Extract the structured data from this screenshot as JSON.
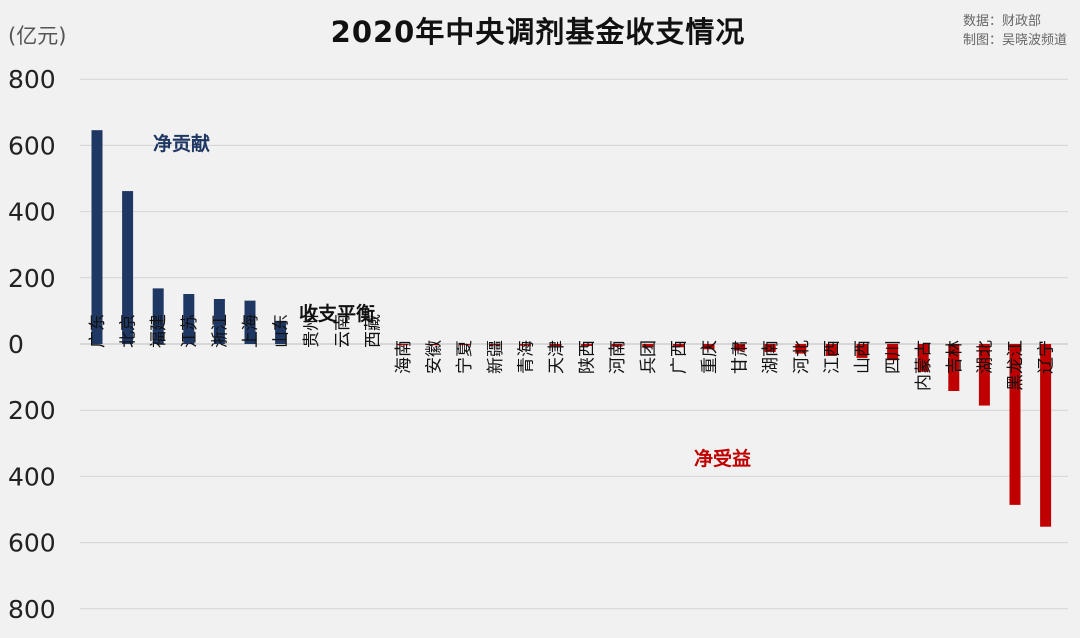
{
  "chart_data": {
    "type": "bar",
    "title": "2020年中央调剂基金收支情况",
    "unit": "(亿元)",
    "source_line1": "数据：财政部",
    "source_line2": "制图：吴晓波频道",
    "ylim": [
      -800,
      800
    ],
    "yticks": [
      800,
      600,
      400,
      200,
      0,
      -200,
      -400,
      -600,
      -800
    ],
    "ytick_labels": [
      "800",
      "600",
      "400",
      "200",
      "0",
      "200",
      "400",
      "600",
      "800"
    ],
    "grid": true,
    "categories": [
      "广东",
      "北京",
      "福建",
      "江苏",
      "浙江",
      "上海",
      "山东",
      "贵州",
      "云南",
      "西藏",
      "海南",
      "安徽",
      "宁夏",
      "新疆",
      "青海",
      "天津",
      "陕西",
      "河南",
      "兵团",
      "广西",
      "重庆",
      "甘肃",
      "湖南",
      "河北",
      "江西",
      "山西",
      "四川",
      "内蒙古",
      "吉林",
      "湖北",
      "黑龙江",
      "辽宁"
    ],
    "values": [
      646,
      462,
      168,
      151,
      136,
      131,
      70,
      0,
      0,
      0,
      -1,
      -2,
      -3,
      -4,
      -5,
      -6,
      -6,
      -8,
      -9,
      -10,
      -16,
      -20,
      -24,
      -29,
      -36,
      -42,
      -49,
      -84,
      -142,
      -186,
      -486,
      -552
    ],
    "positive_color": "#1f3763",
    "negative_color": "#c00000",
    "annotations": {
      "positive": "净贡献",
      "balanced": "收支平衡",
      "negative": "净受益"
    }
  }
}
